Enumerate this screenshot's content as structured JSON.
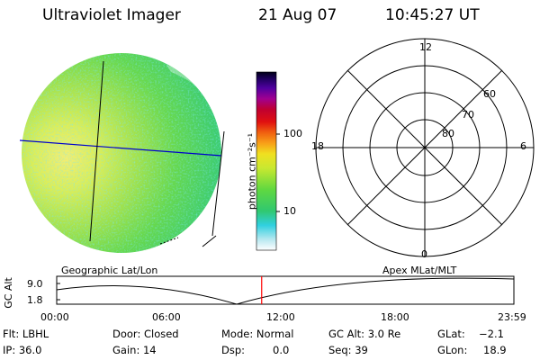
{
  "header": {
    "instrument": "Ultraviolet Imager",
    "date": "21 Aug 07",
    "time": "10:45:27 UT"
  },
  "colorbar": {
    "label": "photon cm⁻²s⁻¹",
    "ticks": [
      "100",
      "10"
    ],
    "scale": "log"
  },
  "polar": {
    "mlt_labels": [
      "12",
      "18",
      "6",
      "0"
    ],
    "mlat_labels": [
      "60",
      "70",
      "80"
    ]
  },
  "timeline": {
    "left_title": "Geographic Lat/Lon",
    "right_title": "Apex MLat/MLT",
    "ylabel": "GC Alt",
    "y_ticks": [
      "9.0",
      "1.8"
    ],
    "x_ticks": [
      "00:00",
      "06:00",
      "12:00",
      "18:00",
      "23:59"
    ],
    "current_time_hours": 10.76
  },
  "info": {
    "flt": "Flt: LBHL",
    "ip": "IP: 36.0",
    "door": "Door: Closed",
    "gain": "Gain: 14",
    "mode": "Mode: Normal",
    "dsp_label": "Dsp:",
    "dsp_value": "0.0",
    "gcalt": "GC Alt: 3.0 Re",
    "seq": "Seq: 39",
    "glat_label": "GLat:",
    "glat_value": "−2.1",
    "glon_label": "GLon:",
    "glon_value": "18.9"
  },
  "colors": {
    "geo_grid": "#0000cc",
    "time_marker": "#ff0000"
  }
}
